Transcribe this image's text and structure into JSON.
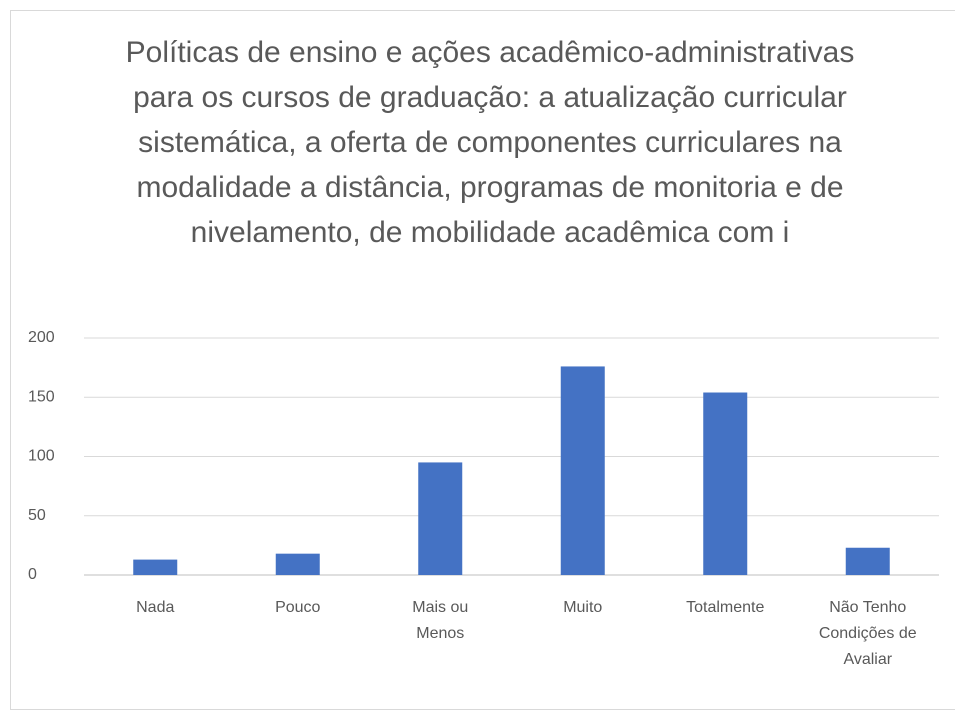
{
  "chart_data": {
    "type": "bar",
    "title": "Políticas de ensino e ações acadêmico-administrativas para os cursos de graduação: a atualização curricular sistemática, a oferta de componentes curriculares na modalidade a distância, programas de monitoria e de nivelamento, de mobilidade acadêmica com i",
    "categories": [
      "Nada",
      "Pouco",
      "Mais ou Menos",
      "Muito",
      "Totalmente",
      "Não Tenho Condições de Avaliar"
    ],
    "values": [
      13,
      18,
      95,
      176,
      154,
      23
    ],
    "color": "#4472c4",
    "ylim": [
      0,
      200
    ],
    "yticks": [
      0,
      50,
      100,
      150,
      200
    ],
    "grid": true
  }
}
